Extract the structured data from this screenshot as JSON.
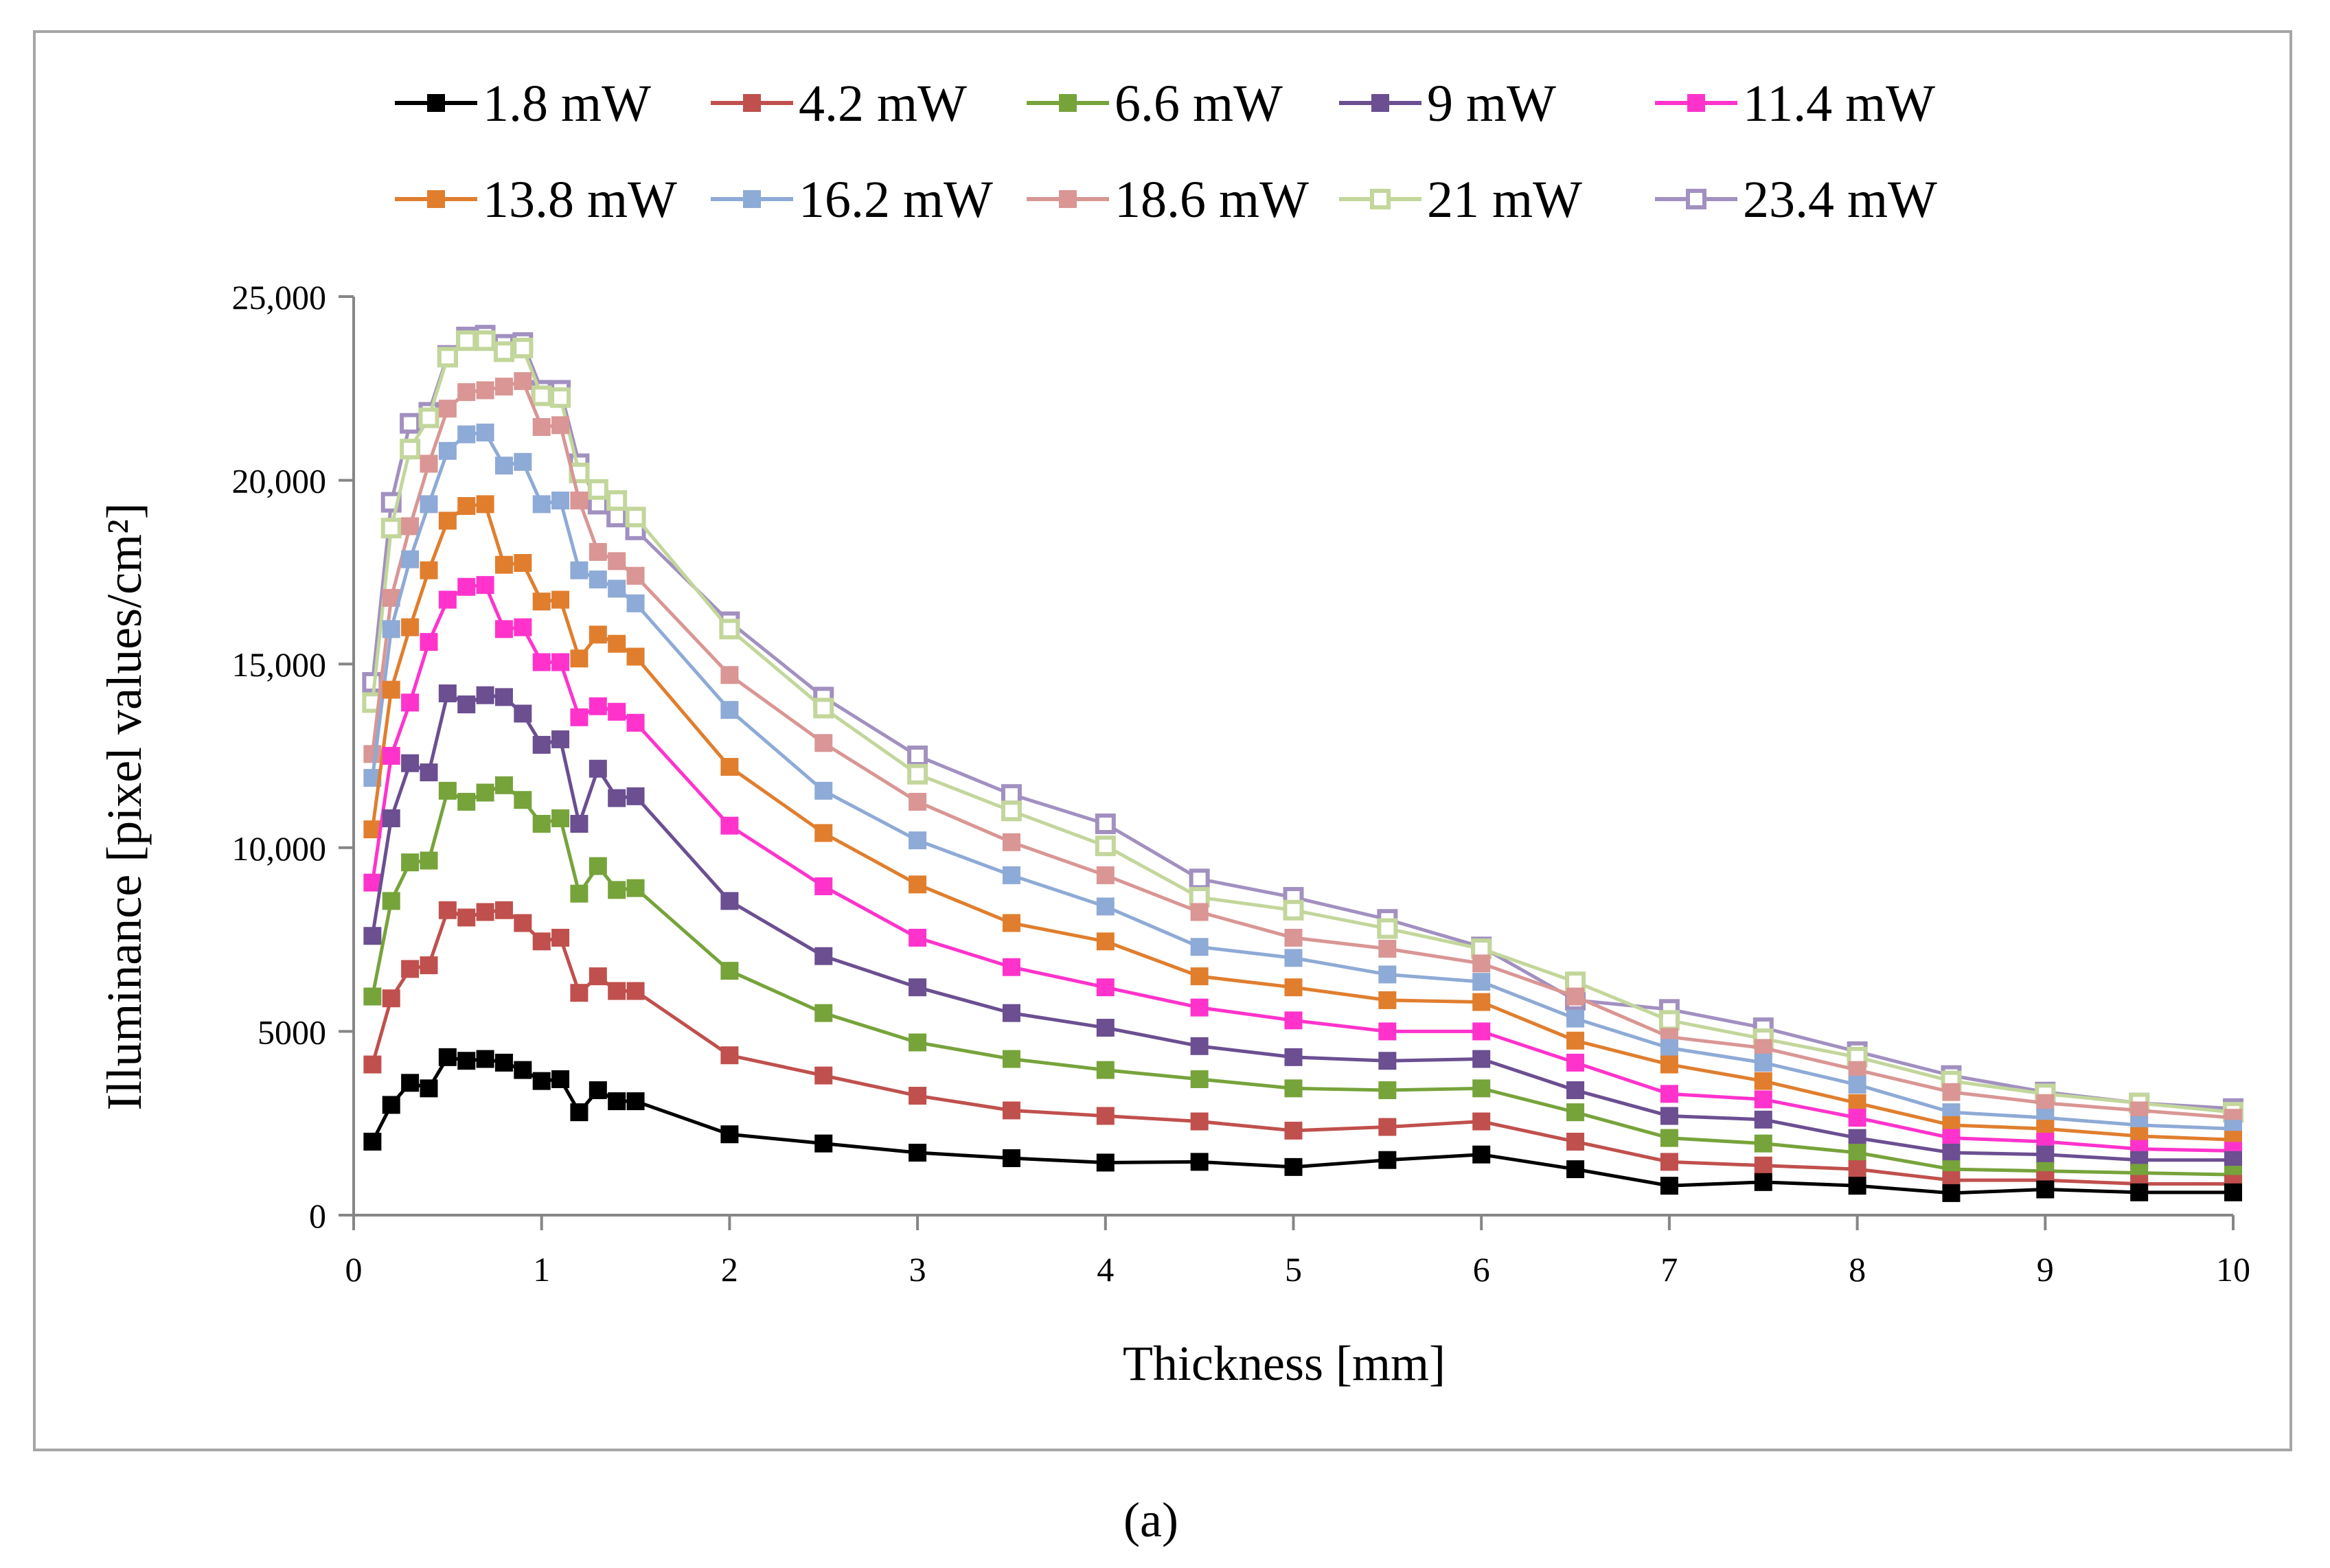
{
  "chart_data": {
    "type": "line",
    "title": "",
    "xlabel": "Thickness [mm]",
    "ylabel": "Illuminance  [pixel values/cm²]",
    "panel_label": "(a)",
    "xlim": [
      0,
      10
    ],
    "ylim": [
      0,
      25000
    ],
    "x_ticks": [
      "0",
      "1",
      "2",
      "3",
      "4",
      "5",
      "6",
      "7",
      "8",
      "9",
      "10"
    ],
    "y_ticks": [
      "0",
      "5000",
      "10,000",
      "15,000",
      "20,000",
      "25,000"
    ],
    "grid": false,
    "legend_position": "top",
    "x": [
      0.1,
      0.2,
      0.3,
      0.4,
      0.5,
      0.6,
      0.7,
      0.8,
      0.9,
      1.0,
      1.1,
      1.2,
      1.3,
      1.4,
      1.5,
      2,
      2.5,
      3,
      3.5,
      4,
      4.5,
      5,
      5.5,
      6,
      6.5,
      7,
      7.5,
      8,
      8.5,
      9,
      9.5,
      10
    ],
    "series": [
      {
        "name": "1.8 mW",
        "color": "#000000",
        "marker": "filled",
        "values": [
          2000,
          3000,
          3600,
          3450,
          4300,
          4200,
          4250,
          4150,
          3950,
          3650,
          3700,
          2800,
          3400,
          3100,
          3100,
          2200,
          1950,
          1700,
          1550,
          1430,
          1450,
          1310,
          1500,
          1650,
          1250,
          800,
          900,
          800,
          600,
          700,
          620,
          620
        ]
      },
      {
        "name": "4.2 mW",
        "color": "#c0504d",
        "marker": "filled",
        "values": [
          4100,
          5900,
          6700,
          6800,
          8300,
          8100,
          8250,
          8300,
          7950,
          7450,
          7550,
          6050,
          6500,
          6100,
          6100,
          4350,
          3800,
          3250,
          2850,
          2700,
          2550,
          2300,
          2400,
          2550,
          2000,
          1450,
          1350,
          1250,
          950,
          950,
          850,
          850
        ]
      },
      {
        "name": "6.6 mW",
        "color": "#77a33b",
        "marker": "filled",
        "values": [
          5950,
          8550,
          9600,
          9650,
          11550,
          11250,
          11500,
          11700,
          11300,
          10650,
          10800,
          8750,
          9500,
          8850,
          8900,
          6650,
          5500,
          4700,
          4250,
          3950,
          3700,
          3450,
          3400,
          3450,
          2800,
          2100,
          1950,
          1700,
          1250,
          1200,
          1150,
          1100
        ]
      },
      {
        "name": "9 mW",
        "color": "#6b4f91",
        "marker": "filled",
        "values": [
          7600,
          10800,
          12300,
          12050,
          14200,
          13900,
          14150,
          14100,
          13650,
          12800,
          12950,
          10650,
          12150,
          11350,
          11400,
          8550,
          7050,
          6200,
          5500,
          5100,
          4600,
          4300,
          4200,
          4250,
          3400,
          2700,
          2600,
          2100,
          1700,
          1650,
          1500,
          1500
        ]
      },
      {
        "name": "11.4 mW",
        "color": "#ff33cc",
        "marker": "filled",
        "values": [
          9050,
          12500,
          13950,
          15600,
          16750,
          17100,
          17150,
          15950,
          16000,
          15050,
          15050,
          13550,
          13850,
          13700,
          13400,
          10600,
          8950,
          7550,
          6750,
          6200,
          5650,
          5300,
          5000,
          5000,
          4150,
          3300,
          3150,
          2650,
          2100,
          2000,
          1800,
          1750
        ]
      },
      {
        "name": "13.8 mW",
        "color": "#e07e2e",
        "marker": "filled",
        "values": [
          10500,
          14300,
          16000,
          17550,
          18900,
          19300,
          19350,
          17700,
          17750,
          16700,
          16750,
          15150,
          15800,
          15550,
          15200,
          12200,
          10400,
          9000,
          7950,
          7450,
          6500,
          6200,
          5850,
          5800,
          4750,
          4100,
          3650,
          3050,
          2450,
          2350,
          2150,
          2050
        ]
      },
      {
        "name": "16.2 mW",
        "color": "#8eaad6",
        "marker": "filled",
        "values": [
          11900,
          15950,
          17850,
          19350,
          20800,
          21250,
          21300,
          20400,
          20500,
          19350,
          19450,
          17550,
          17300,
          17050,
          16650,
          13750,
          11550,
          10200,
          9250,
          8400,
          7300,
          7000,
          6550,
          6350,
          5350,
          4550,
          4150,
          3550,
          2800,
          2650,
          2450,
          2350
        ]
      },
      {
        "name": "18.6 mW",
        "color": "#d99694",
        "marker": "filled",
        "values": [
          12550,
          16800,
          18750,
          20450,
          21950,
          22400,
          22450,
          22550,
          22700,
          21450,
          21500,
          19450,
          18050,
          17800,
          17400,
          14700,
          12850,
          11250,
          10150,
          9250,
          8250,
          7550,
          7250,
          6850,
          5950,
          4850,
          4550,
          3950,
          3350,
          3050,
          2850,
          2650
        ]
      },
      {
        "name": "21 mW",
        "color": "#c3d69b",
        "marker": "hollow",
        "values": [
          13950,
          18700,
          20850,
          21700,
          23350,
          23800,
          23800,
          23500,
          23600,
          22300,
          22250,
          20200,
          19750,
          19450,
          19000,
          15950,
          13800,
          12000,
          11000,
          10050,
          8650,
          8300,
          7800,
          7250,
          6350,
          5300,
          4800,
          4300,
          3650,
          3300,
          3050,
          2800
        ]
      },
      {
        "name": "23.4 mW",
        "color": "#a190c0",
        "marker": "hollow",
        "values": [
          14500,
          19400,
          21550,
          21850,
          23400,
          23900,
          23950,
          23700,
          23750,
          22450,
          22450,
          20450,
          19350,
          19000,
          18650,
          16150,
          14100,
          12500,
          11450,
          10650,
          9150,
          8650,
          8050,
          7300,
          5850,
          5600,
          5100,
          4450,
          3800,
          3350,
          3050,
          2900
        ]
      }
    ]
  }
}
